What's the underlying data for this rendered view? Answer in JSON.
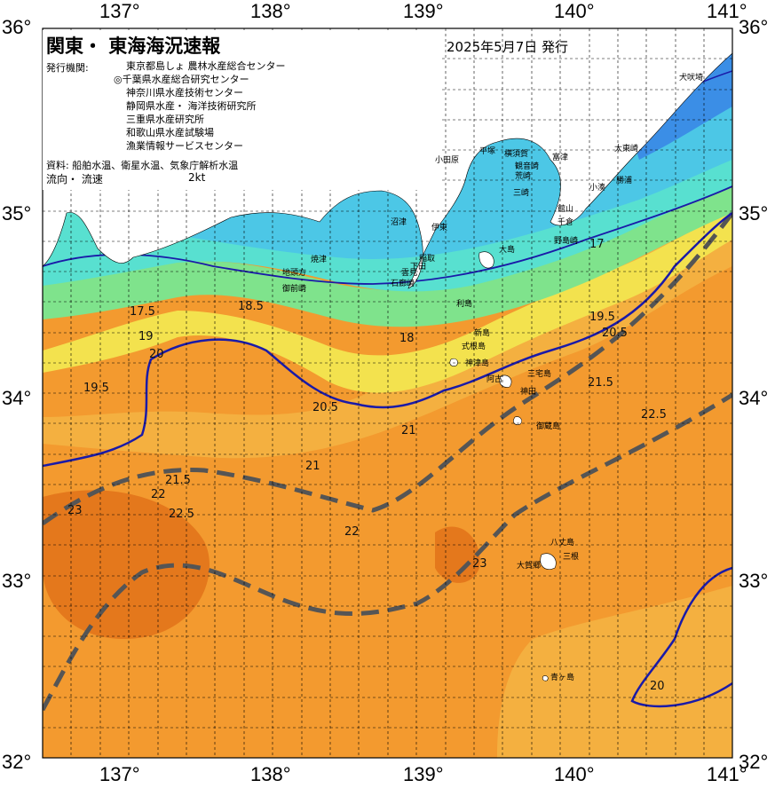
{
  "header": {
    "title": "関東・ 東海海況速報",
    "date": "2025年5月7日 発行",
    "issuers_label": "発行機関:",
    "issuers": [
      "東京都島しょ 農林水産総合センター",
      "◎千葉県水産総合研究センター",
      "神奈川県水産技術センター",
      "静岡県水産・ 海洋技術研究所",
      "三重県水産研究所",
      "和歌山県水産試験場",
      "漁業情報サービスセンター"
    ],
    "sources": "資料: 船舶水温、衛星水温、気象庁解析水温",
    "flow_label": "流向・ 流速",
    "flow_scale": "2kt"
  },
  "axes": {
    "lon_ticks": [
      "137°",
      "138°",
      "139°",
      "140°",
      "141°"
    ],
    "lat_ticks": [
      "36°",
      "35°",
      "34°",
      "33°",
      "32°"
    ]
  },
  "places": [
    "犬吠埼",
    "太東崎",
    "勝浦",
    "小湊",
    "千倉",
    "館山",
    "野島崎",
    "富津",
    "観音崎",
    "横須賀",
    "荒崎",
    "三崎",
    "平塚",
    "小田原",
    "伊東",
    "稲取",
    "下田",
    "雲見",
    "石廊崎",
    "御前崎",
    "地頭方",
    "焼津",
    "沼津",
    "大島",
    "利島",
    "新島",
    "式根島",
    "神津島",
    "三宅島",
    "阿古",
    "御蔵島",
    "神田",
    "八丈島",
    "三根",
    "大賀郷",
    "青ヶ島"
  ],
  "isotherms": [
    "17.5",
    "18",
    "18.5",
    "19",
    "19.5",
    "20",
    "20.5",
    "21",
    "21.5",
    "22",
    "22.5",
    "23",
    "17",
    "19.5",
    "20.5",
    "21.5",
    "22.5",
    "23",
    "22",
    "21",
    "20"
  ],
  "colors": {
    "c16": "#3b8ee6",
    "c17": "#4cc7e6",
    "c18": "#58e0d0",
    "c19": "#7fe38c",
    "c20": "#f3e24e",
    "c21": "#f4b040",
    "c22": "#f39a2f",
    "c23": "#e4781c",
    "kuroshio": "#555555",
    "contour20": "#1a1aa8",
    "land": "#ffffff"
  }
}
